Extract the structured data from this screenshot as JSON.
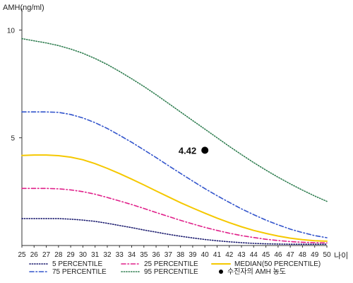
{
  "chart_data": {
    "type": "line",
    "ylabel": "AMH(ng/ml)",
    "xlabel": "나이",
    "xlim": [
      25,
      50
    ],
    "ylim": [
      0,
      11
    ],
    "yticks": [
      5,
      10
    ],
    "x": [
      25,
      26,
      27,
      28,
      29,
      30,
      31,
      32,
      33,
      34,
      35,
      36,
      37,
      38,
      39,
      40,
      41,
      42,
      43,
      44,
      45,
      46,
      47,
      48,
      49,
      50
    ],
    "series": [
      {
        "name": "5 PERCENTILE",
        "color": "#1a1a6e",
        "dash": "dotted",
        "values": [
          1.25,
          1.25,
          1.25,
          1.25,
          1.22,
          1.18,
          1.12,
          1.03,
          0.93,
          0.83,
          0.72,
          0.62,
          0.52,
          0.43,
          0.35,
          0.28,
          0.22,
          0.17,
          0.13,
          0.1,
          0.08,
          0.07,
          0.06,
          0.06,
          0.06,
          0.06
        ]
      },
      {
        "name": "25 PERCENTILE",
        "color": "#e0208a",
        "dash": "dashdot",
        "values": [
          2.65,
          2.65,
          2.65,
          2.63,
          2.58,
          2.5,
          2.38,
          2.23,
          2.07,
          1.9,
          1.72,
          1.53,
          1.35,
          1.17,
          1.0,
          0.84,
          0.7,
          0.57,
          0.46,
          0.37,
          0.29,
          0.23,
          0.18,
          0.15,
          0.13,
          0.12
        ]
      },
      {
        "name": "MEDIAN(50 PERCENTILE)",
        "color": "#f5c800",
        "dash": "solid",
        "values": [
          4.18,
          4.2,
          4.2,
          4.17,
          4.1,
          3.98,
          3.8,
          3.58,
          3.34,
          3.08,
          2.81,
          2.53,
          2.26,
          1.99,
          1.74,
          1.5,
          1.27,
          1.06,
          0.87,
          0.7,
          0.56,
          0.44,
          0.34,
          0.27,
          0.22,
          0.2
        ]
      },
      {
        "name": "75 PERCENTILE",
        "color": "#3355cc",
        "dash": "dashdot",
        "values": [
          6.2,
          6.2,
          6.2,
          6.18,
          6.08,
          5.92,
          5.7,
          5.43,
          5.12,
          4.79,
          4.44,
          4.08,
          3.71,
          3.35,
          2.99,
          2.64,
          2.31,
          2.0,
          1.7,
          1.43,
          1.18,
          0.96,
          0.76,
          0.6,
          0.46,
          0.36
        ]
      },
      {
        "name": "95 PERCENTILE",
        "color": "#2e7d4f",
        "dash": "dotted",
        "values": [
          9.6,
          9.5,
          9.4,
          9.28,
          9.12,
          8.92,
          8.68,
          8.4,
          8.08,
          7.74,
          7.38,
          7.0,
          6.6,
          6.2,
          5.8,
          5.4,
          5.0,
          4.6,
          4.22,
          3.85,
          3.5,
          3.17,
          2.86,
          2.57,
          2.3,
          2.05
        ]
      }
    ],
    "patient_point": {
      "name": "수진자의 AMH 농도",
      "x": 40,
      "y": 4.42,
      "label": "4.42",
      "color": "#000000"
    },
    "legend": {
      "placement": "bottom",
      "order": [
        "5 PERCENTILE",
        "25 PERCENTILE",
        "MEDIAN(50 PERCENTILE)",
        "75 PERCENTILE",
        "95 PERCENTILE",
        "수진자의 AMH 농도"
      ]
    }
  }
}
